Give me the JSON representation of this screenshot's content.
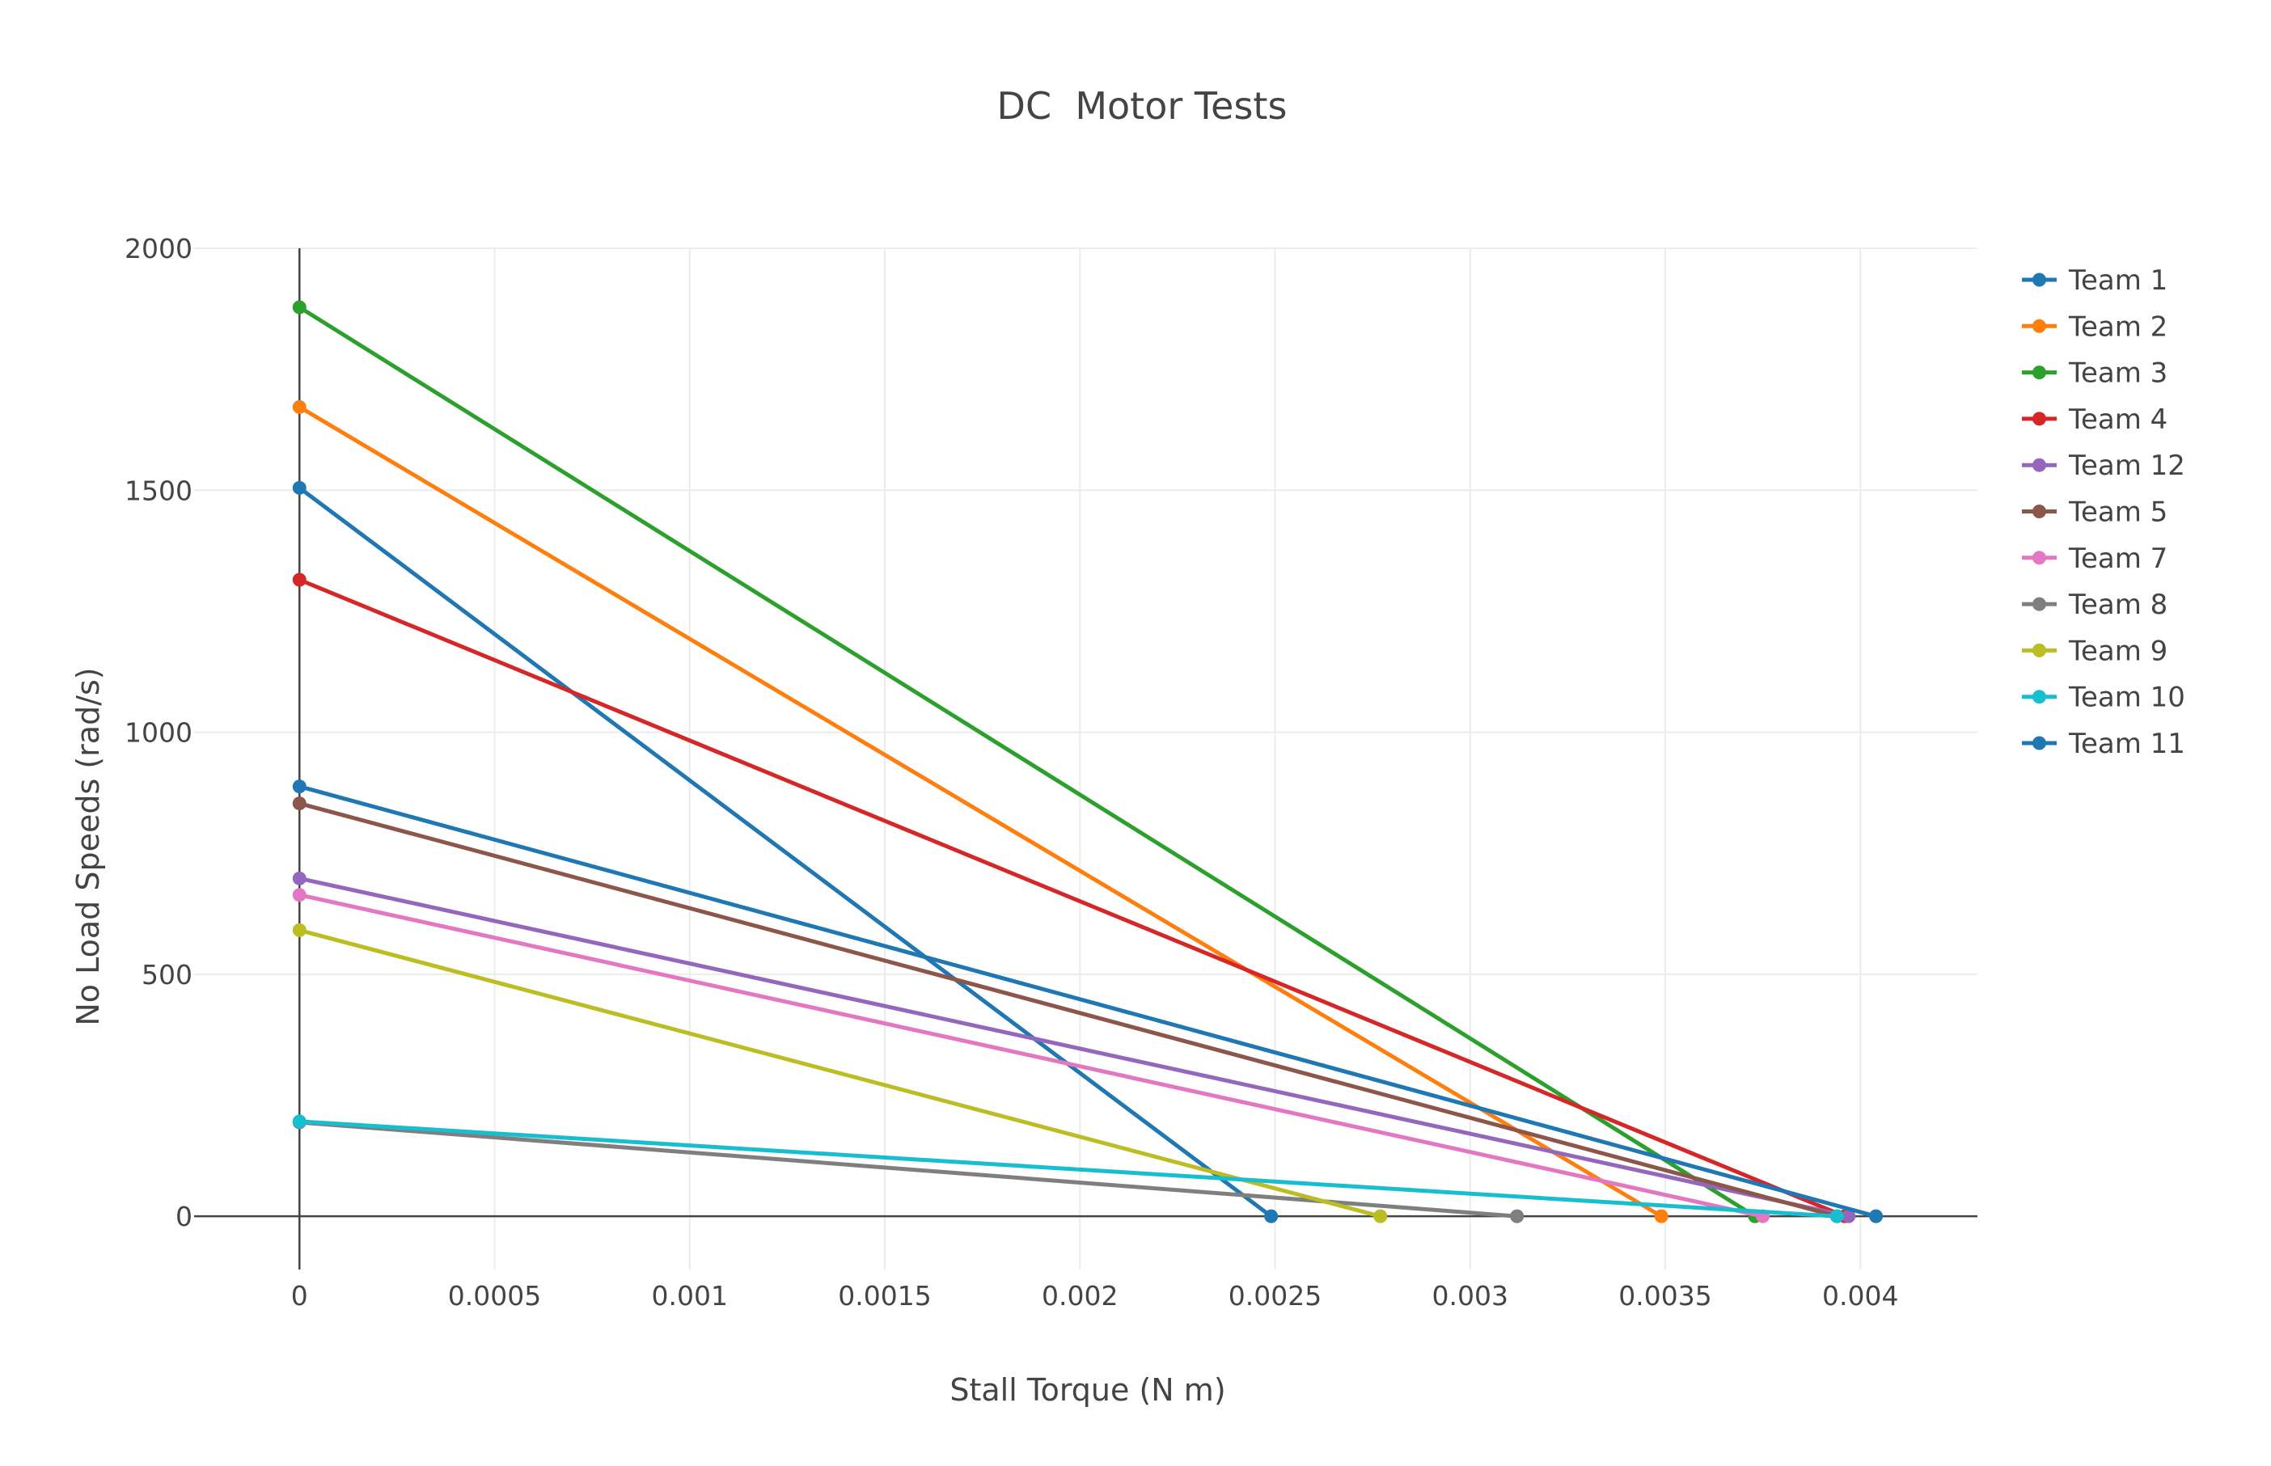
{
  "chart_data": {
    "type": "line",
    "title": "DC  Motor Tests",
    "xlabel": "Stall Torque (N m)",
    "ylabel": "No Load Speeds (rad/s)",
    "xlim": [
      -0.00027,
      0.0043
    ],
    "ylim": [
      -110,
      2000
    ],
    "xticks": [
      0,
      0.0005,
      0.001,
      0.0015,
      0.002,
      0.0025,
      0.003,
      0.0035,
      0.004
    ],
    "xtick_labels": [
      "0",
      "0.0005",
      "0.001",
      "0.0015",
      "0.002",
      "0.0025",
      "0.003",
      "0.0035",
      "0.004"
    ],
    "yticks": [
      0,
      500,
      1000,
      1500,
      2000
    ],
    "ytick_labels": [
      "0",
      "500",
      "1000",
      "1500",
      "2000"
    ],
    "grid": true,
    "legend_position": "right",
    "series": [
      {
        "name": "Team 1",
        "color": "#1f77b4",
        "x": [
          0,
          0.00249
        ],
        "y": [
          1505,
          0
        ]
      },
      {
        "name": "Team 2",
        "color": "#ff7f0e",
        "x": [
          0,
          0.00349
        ],
        "y": [
          1672,
          0
        ]
      },
      {
        "name": "Team 3",
        "color": "#2ca02c",
        "x": [
          0,
          0.00373
        ],
        "y": [
          1878,
          0
        ]
      },
      {
        "name": "Team 4",
        "color": "#d62728",
        "x": [
          0,
          0.00396
        ],
        "y": [
          1315,
          0
        ]
      },
      {
        "name": "Team 12",
        "color": "#9467bd",
        "x": [
          0,
          0.00397
        ],
        "y": [
          698,
          0
        ]
      },
      {
        "name": "Team 5",
        "color": "#8c564b",
        "x": [
          0,
          0.00394
        ],
        "y": [
          853,
          0
        ]
      },
      {
        "name": "Team 7",
        "color": "#e377c2",
        "x": [
          0,
          0.00375
        ],
        "y": [
          664,
          0
        ]
      },
      {
        "name": "Team 8",
        "color": "#7f7f7f",
        "x": [
          0,
          0.00312
        ],
        "y": [
          194,
          0
        ]
      },
      {
        "name": "Team 9",
        "color": "#bcbd22",
        "x": [
          0,
          0.00277
        ],
        "y": [
          591,
          0
        ]
      },
      {
        "name": "Team 10",
        "color": "#17becf",
        "x": [
          0,
          0.00394
        ],
        "y": [
          196,
          0
        ]
      },
      {
        "name": "Team 11",
        "color": "#1f77b4",
        "x": [
          0,
          0.00404
        ],
        "y": [
          888,
          0
        ]
      }
    ]
  }
}
